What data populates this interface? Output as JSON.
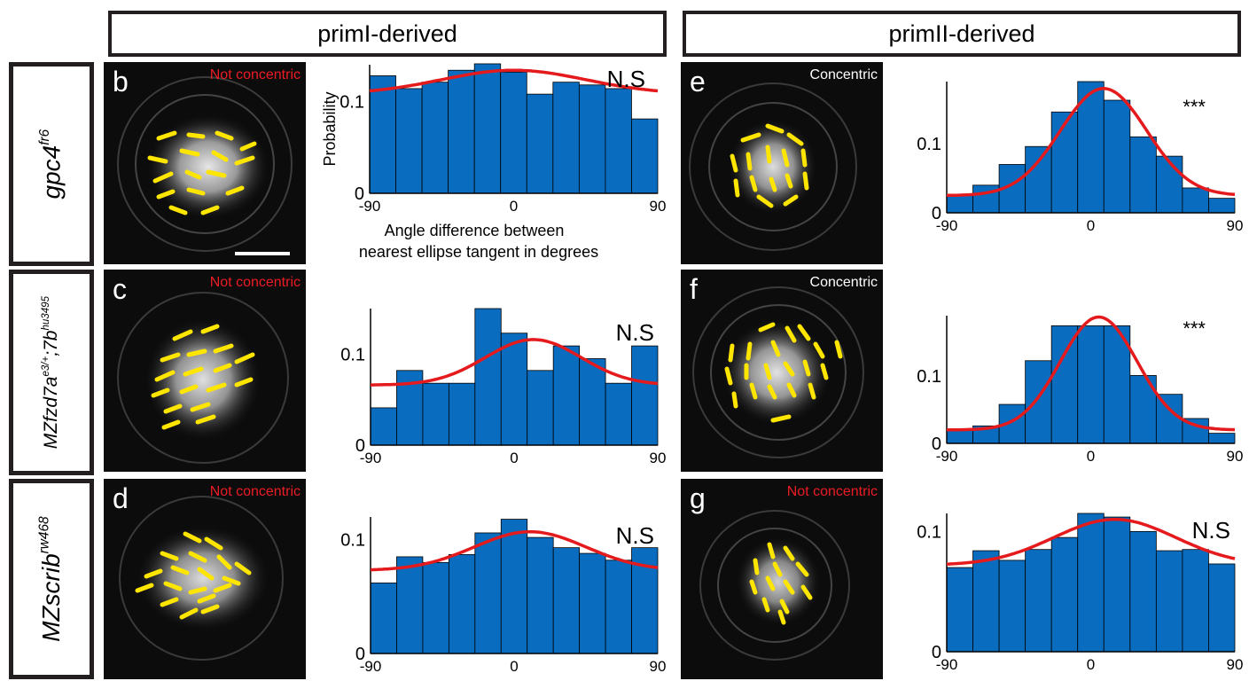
{
  "headers": {
    "prim1": "primI-derived",
    "prim2": "primII-derived"
  },
  "rows": [
    {
      "gene": "gpc4",
      "sup": "fr6"
    },
    {
      "gene": "MZfzd7a",
      "sup": "e3/+",
      "gene2": ";7b",
      "sup2": "hu3495"
    },
    {
      "gene": "MZscrib",
      "sup": "rw468"
    }
  ],
  "panels": {
    "b": {
      "letter": "b",
      "status": "Not concentric"
    },
    "c": {
      "letter": "c",
      "status": "Not concentric"
    },
    "d": {
      "letter": "d",
      "status": "Not concentric"
    },
    "e": {
      "letter": "e",
      "status": "Concentric"
    },
    "f": {
      "letter": "f",
      "status": "Concentric"
    },
    "g": {
      "letter": "g",
      "status": "Not concentric"
    }
  },
  "colors": {
    "bar": "#0a6cbf",
    "fit": "#e41a1c",
    "dash": "#ffe600",
    "red_text": "#ed1c24"
  },
  "axis": {
    "ylabel": "Probability",
    "xlabel_line1": "Angle difference between",
    "xlabel_line2": "nearest ellipse tangent in degrees"
  },
  "chart_data": [
    {
      "id": "b",
      "type": "bar",
      "annotation": "N.S",
      "xlim": [
        -90,
        90
      ],
      "ylim": [
        0,
        0.14
      ],
      "xticks": [
        "-90",
        "0",
        "90"
      ],
      "yticks": [
        "0",
        "0.1"
      ],
      "ytick_values": [
        0,
        0.1
      ],
      "values": [
        0.128,
        0.114,
        0.121,
        0.134,
        0.141,
        0.132,
        0.108,
        0.121,
        0.118,
        0.114,
        0.081
      ],
      "fit": {
        "base": 0.108,
        "amp": 0.026,
        "center": 0,
        "sigma": 45
      }
    },
    {
      "id": "c",
      "type": "bar",
      "annotation": "N.S",
      "xlim": [
        -90,
        90
      ],
      "ylim": [
        0,
        0.15
      ],
      "xticks": [
        "-90",
        "0",
        "90"
      ],
      "yticks": [
        "0",
        "0.1"
      ],
      "ytick_values": [
        0,
        0.1
      ],
      "values": [
        0.041,
        0.082,
        0.068,
        0.068,
        0.15,
        0.123,
        0.082,
        0.109,
        0.095,
        0.068,
        0.109
      ],
      "fit": {
        "base": 0.066,
        "amp": 0.05,
        "center": 12,
        "sigma": 30
      }
    },
    {
      "id": "d",
      "type": "bar",
      "annotation": "N.S",
      "xlim": [
        -90,
        90
      ],
      "ylim": [
        0,
        0.12
      ],
      "xticks": [
        "-90",
        "0",
        "90"
      ],
      "yticks": [
        "0",
        "0.1"
      ],
      "ytick_values": [
        0,
        0.1
      ],
      "values": [
        0.062,
        0.085,
        0.08,
        0.087,
        0.106,
        0.118,
        0.102,
        0.093,
        0.088,
        0.082,
        0.093
      ],
      "fit": {
        "base": 0.073,
        "amp": 0.034,
        "center": 10,
        "sigma": 35
      }
    },
    {
      "id": "e",
      "type": "bar",
      "annotation": "***",
      "xlim": [
        -90,
        90
      ],
      "ylim": [
        0,
        0.19
      ],
      "xticks": [
        "-90",
        "0",
        "90"
      ],
      "yticks": [
        "0",
        "0.1"
      ],
      "ytick_values": [
        0,
        0.1
      ],
      "values": [
        0.026,
        0.04,
        0.07,
        0.096,
        0.146,
        0.19,
        0.163,
        0.11,
        0.082,
        0.036,
        0.021
      ],
      "fit": {
        "base": 0.025,
        "amp": 0.155,
        "center": 8,
        "sigma": 27
      }
    },
    {
      "id": "f",
      "type": "bar",
      "annotation": "***",
      "xlim": [
        -90,
        90
      ],
      "ylim": [
        0,
        0.19
      ],
      "xticks": [
        "-90",
        "0",
        "90"
      ],
      "yticks": [
        "0",
        "0.1"
      ],
      "ytick_values": [
        0,
        0.1
      ],
      "values": [
        0.019,
        0.026,
        0.058,
        0.123,
        0.175,
        0.175,
        0.175,
        0.101,
        0.073,
        0.037,
        0.015
      ],
      "fit": {
        "base": 0.02,
        "amp": 0.168,
        "center": 5,
        "sigma": 24
      }
    },
    {
      "id": "g",
      "type": "bar",
      "annotation": "N.S",
      "xlim": [
        -90,
        90
      ],
      "ylim": [
        0,
        0.115
      ],
      "xticks": [
        "-90",
        "0",
        "90"
      ],
      "yticks": [
        "0",
        "0.1"
      ],
      "ytick_values": [
        0,
        0.1
      ],
      "values": [
        0.07,
        0.084,
        0.076,
        0.085,
        0.095,
        0.115,
        0.112,
        0.1,
        0.084,
        0.085,
        0.073
      ],
      "fit": {
        "base": 0.072,
        "amp": 0.038,
        "center": 15,
        "sigma": 38
      }
    }
  ]
}
